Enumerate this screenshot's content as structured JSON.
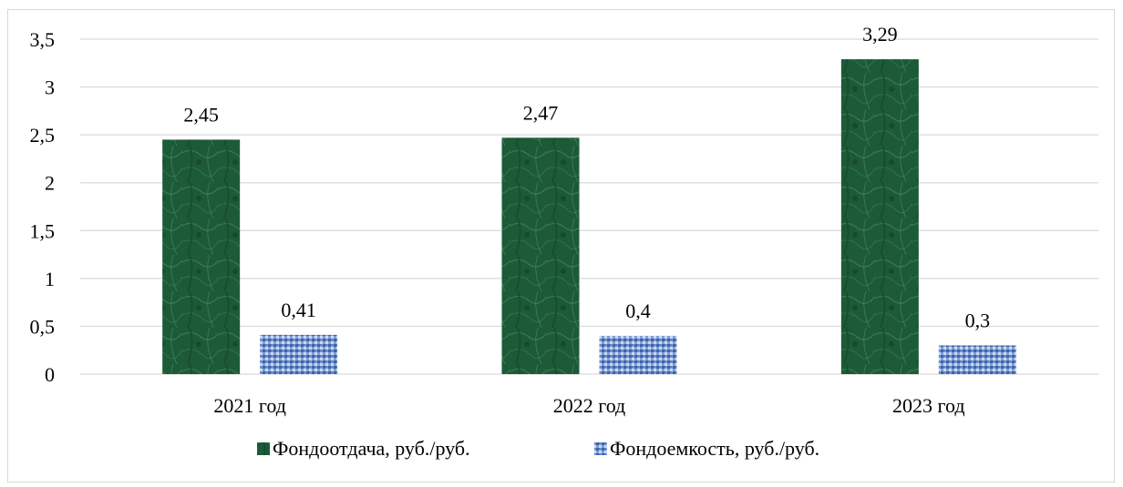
{
  "chart_data": {
    "type": "bar",
    "categories": [
      "2021 год",
      "2022 год",
      "2023 год"
    ],
    "series": [
      {
        "name": "Фондоотдача, руб./руб.",
        "values": [
          2.45,
          2.47,
          3.29
        ],
        "labels": [
          "2,45",
          "2,47",
          "3,29"
        ],
        "color": "#1f5c3a"
      },
      {
        "name": "Фондоемкость, руб./руб.",
        "values": [
          0.41,
          0.4,
          0.3
        ],
        "labels": [
          "0,41",
          "0,4",
          "0,3"
        ],
        "color": "#6d8fd0"
      }
    ],
    "y_ticks": [
      "0",
      "0,5",
      "1",
      "1,5",
      "2",
      "2,5",
      "3",
      "3,5"
    ],
    "ylim": [
      0,
      3.5
    ],
    "grid": true,
    "legend_position": "bottom"
  }
}
